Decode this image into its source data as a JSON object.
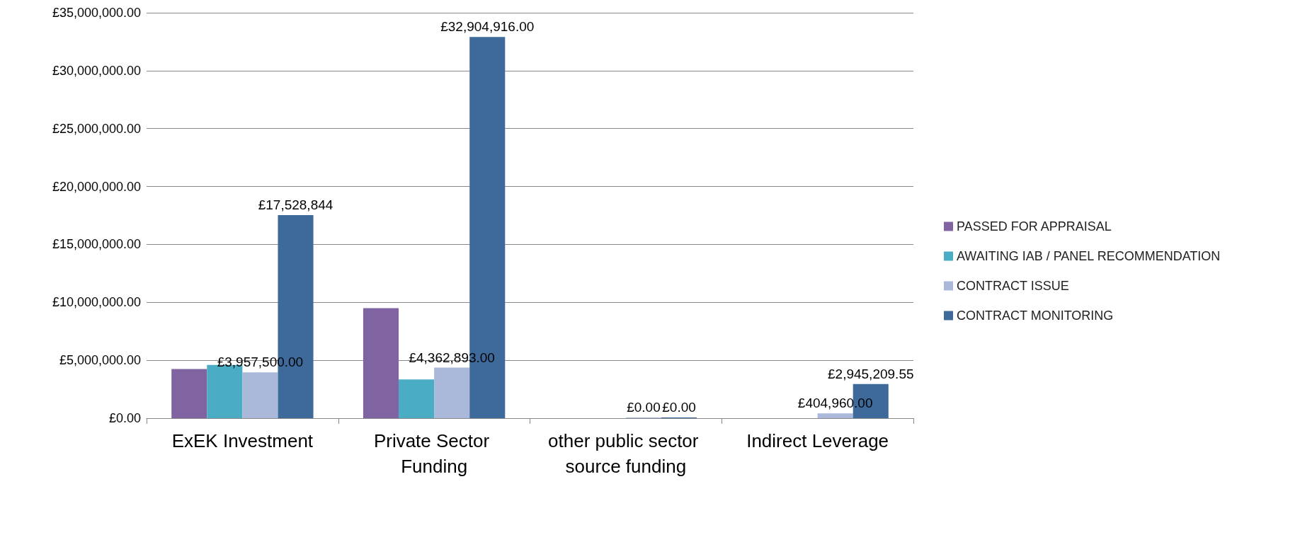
{
  "chart_data": {
    "type": "bar",
    "categories": [
      "ExEK Investment",
      "Private Sector Funding",
      "other public sector source funding",
      "Indirect Leverage"
    ],
    "series": [
      {
        "name": "PASSED FOR APPRAISAL",
        "color": "#8064a2",
        "values": [
          4250000,
          9500000,
          null,
          null
        ]
      },
      {
        "name": "AWAITING IAB / PANEL RECOMMENDATION",
        "color": "#4bacc6",
        "values": [
          4600000,
          3350000,
          null,
          null
        ]
      },
      {
        "name": "CONTRACT ISSUE",
        "color": "#aab9d9",
        "values": [
          3957500,
          4362893,
          0,
          404960
        ],
        "value_labels": [
          "£3,957,500.00",
          "£4,362,893.00",
          "£0.00",
          "£404,960.00"
        ]
      },
      {
        "name": "CONTRACT MONITORING",
        "color": "#3e6a9b",
        "values": [
          17528844,
          32904916,
          0,
          2945209.55
        ],
        "value_labels": [
          "£17,528,844",
          "£32,904,916.00",
          "£0.00",
          "£2,945,209.55"
        ]
      }
    ],
    "ylim": [
      0,
      35000000
    ],
    "yticks": [
      {
        "value": 0,
        "label": "£0.00"
      },
      {
        "value": 5000000,
        "label": "£5,000,000.00"
      },
      {
        "value": 10000000,
        "label": "£10,000,000.00"
      },
      {
        "value": 15000000,
        "label": "£15,000,000.00"
      },
      {
        "value": 20000000,
        "label": "£20,000,000.00"
      },
      {
        "value": 25000000,
        "label": "£25,000,000.00"
      },
      {
        "value": 30000000,
        "label": "£30,000,000.00"
      },
      {
        "value": 35000000,
        "label": "£35,000,000.00"
      }
    ],
    "grid": "y",
    "legend": "right"
  }
}
